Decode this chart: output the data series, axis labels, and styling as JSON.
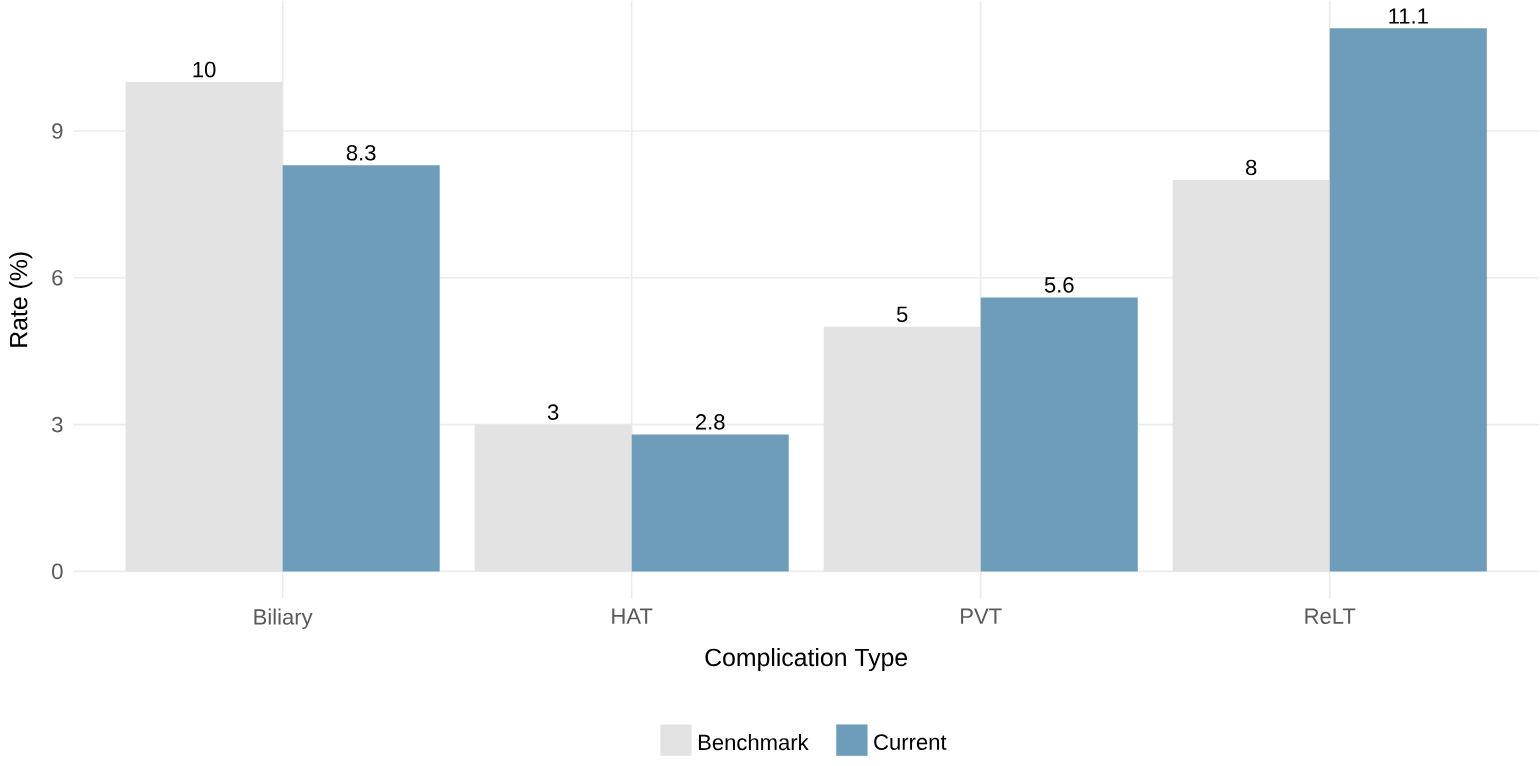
{
  "chart_data": {
    "type": "bar",
    "xlabel": "Complication Type",
    "ylabel": "Rate (%)",
    "categories": [
      "Biliary",
      "HAT",
      "PVT",
      "ReLT"
    ],
    "series": [
      {
        "name": "Benchmark",
        "color": "#e3e3e3",
        "values": [
          10,
          3,
          5,
          8
        ]
      },
      {
        "name": "Current",
        "color": "#6e9dbb",
        "values": [
          8.3,
          2.8,
          5.6,
          11.1
        ]
      }
    ],
    "ylim": [
      -0.56,
      11.66
    ],
    "yticks": [
      0,
      3,
      6,
      9
    ],
    "grid": true,
    "legend": "bottom",
    "data_labels": true
  }
}
